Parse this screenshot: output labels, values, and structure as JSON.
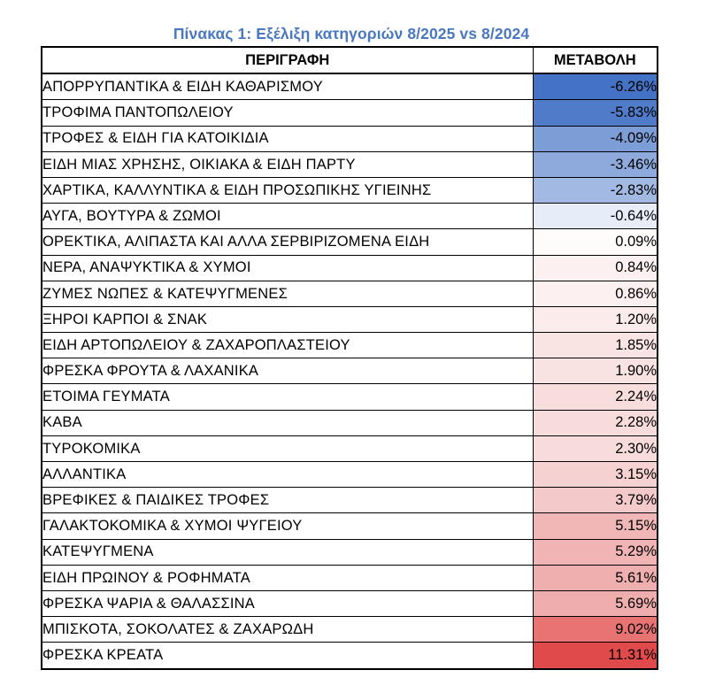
{
  "title": "Πίνακας 1: Εξέλιξη κατηγοριών 8/2025 vs 8/2024",
  "table": {
    "headers": [
      "ΠΕΡΙΓΡΑΦΗ",
      "ΜΕΤΑΒΟΛΗ"
    ],
    "rows": [
      {
        "description": "ΑΠΟΡΡΥΠΑΝΤΙΚΑ & ΕΙΔΗ ΚΑΘΑΡΙΣΜΟΥ",
        "change": "-6.26%",
        "color": "#4472c4"
      },
      {
        "description": "ΤΡΟΦΙΜΑ ΠΑΝΤΟΠΩΛΕΙΟΥ",
        "change": "-5.83%",
        "color": "#4f7bc8"
      },
      {
        "description": "ΤΡΟΦΕΣ & ΕΙΔΗ ΓΙΑ ΚΑΤΟΙΚΙΔΙΑ",
        "change": "-4.09%",
        "color": "#7c9dd6"
      },
      {
        "description": "ΕΙΔΗ ΜΙΑΣ ΧΡΗΣΗΣ, ΟΙΚΙΑΚΑ & ΕΙΔΗ ΠΑΡΤΥ",
        "change": "-3.46%",
        "color": "#8eaadc"
      },
      {
        "description": "ΧΑΡΤΙΚΑ, ΚΑΛΛΥΝΤΙΚΑ  & ΕΙΔΗ ΠΡΟΣΩΠΙΚΗΣ ΥΓΙΕΙΝΗΣ",
        "change": "-2.83%",
        "color": "#a2b9e3"
      },
      {
        "description": "ΑΥΓΑ, ΒΟΥΤΥΡΑ & ΖΩΜΟΙ",
        "change": "-0.64%",
        "color": "#e6ecf8"
      },
      {
        "description": "ΟΡΕΚΤΙΚΑ, ΑΛΙΠΑΣΤΑ ΚΑΙ ΑΛΛΑ ΣΕΡΒΙΡΙΖΟΜΕΝΑ  ΕΙΔΗ",
        "change": "0.09%",
        "color": "#fefbfb"
      },
      {
        "description": "ΝΕΡΑ, ΑΝΑΨΥΚΤΙΚΑ & ΧΥΜΟΙ",
        "change": "0.84%",
        "color": "#fcf0f0"
      },
      {
        "description": "ΖΥΜΕΣ ΝΩΠΕΣ & ΚΑΤΕΨΥΓΜΕΝΕΣ",
        "change": "0.86%",
        "color": "#fcf0f0"
      },
      {
        "description": "ΞΗΡΟΙ ΚΑΡΠΟΙ & ΣΝΑΚ",
        "change": "1.20%",
        "color": "#fbebeb"
      },
      {
        "description": "ΕΙΔΗ ΑΡΤΟΠΩΛΕΙΟΥ & ΖΑΧΑΡΟΠΛΑΣΤΕΙΟΥ",
        "change": "1.85%",
        "color": "#f9e3e3"
      },
      {
        "description": "ΦΡΕΣΚΑ ΦΡΟΥΤΑ & ΛΑΧΑΝΙΚΑ",
        "change": "1.90%",
        "color": "#f9e2e2"
      },
      {
        "description": "ΕΤΟΙΜΑ ΓΕΥΜΑΤΑ",
        "change": "2.24%",
        "color": "#f8dddd"
      },
      {
        "description": "ΚΑΒΑ",
        "change": "2.28%",
        "color": "#f8dcdc"
      },
      {
        "description": "ΤΥΡΟΚΟΜΙΚΑ",
        "change": "2.30%",
        "color": "#f8dcdc"
      },
      {
        "description": "ΑΛΛΑΝΤΙΚΑ",
        "change": "3.15%",
        "color": "#f6d1d1"
      },
      {
        "description": "ΒΡΕΦΙΚΕΣ & ΠΑΙΔΙΚΕΣ ΤΡΟΦΕΣ",
        "change": "3.79%",
        "color": "#f4c9c9"
      },
      {
        "description": "ΓΑΛΑΚΤΟΚΟΜΙΚΑ & ΧΥΜΟΙ ΨΥΓΕΙΟΥ",
        "change": "5.15%",
        "color": "#f1b6b6"
      },
      {
        "description": "ΚΑΤΕΨΥΓΜΕΝΑ",
        "change": "5.29%",
        "color": "#f1b4b4"
      },
      {
        "description": "ΕΙΔΗ ΠΡΩΙΝΟΥ & ΡΟΦΗΜΑΤΑ",
        "change": "5.61%",
        "color": "#f0afaf"
      },
      {
        "description": "ΦΡΕΣΚΑ ΨΑΡΙΑ & ΘΑΛΑΣΣΙΝΑ",
        "change": "5.69%",
        "color": "#efadad"
      },
      {
        "description": "ΜΠΙΣΚΟΤΑ, ΣΟΚΟΛΑΤΕΣ & ΖΑΧΑΡΩΔΗ",
        "change": "9.02%",
        "color": "#e87373"
      },
      {
        "description": "ΦΡΕΣΚΑ ΚΡΕΑΤΑ",
        "change": "11.31%",
        "color": "#e14a4a"
      }
    ]
  }
}
